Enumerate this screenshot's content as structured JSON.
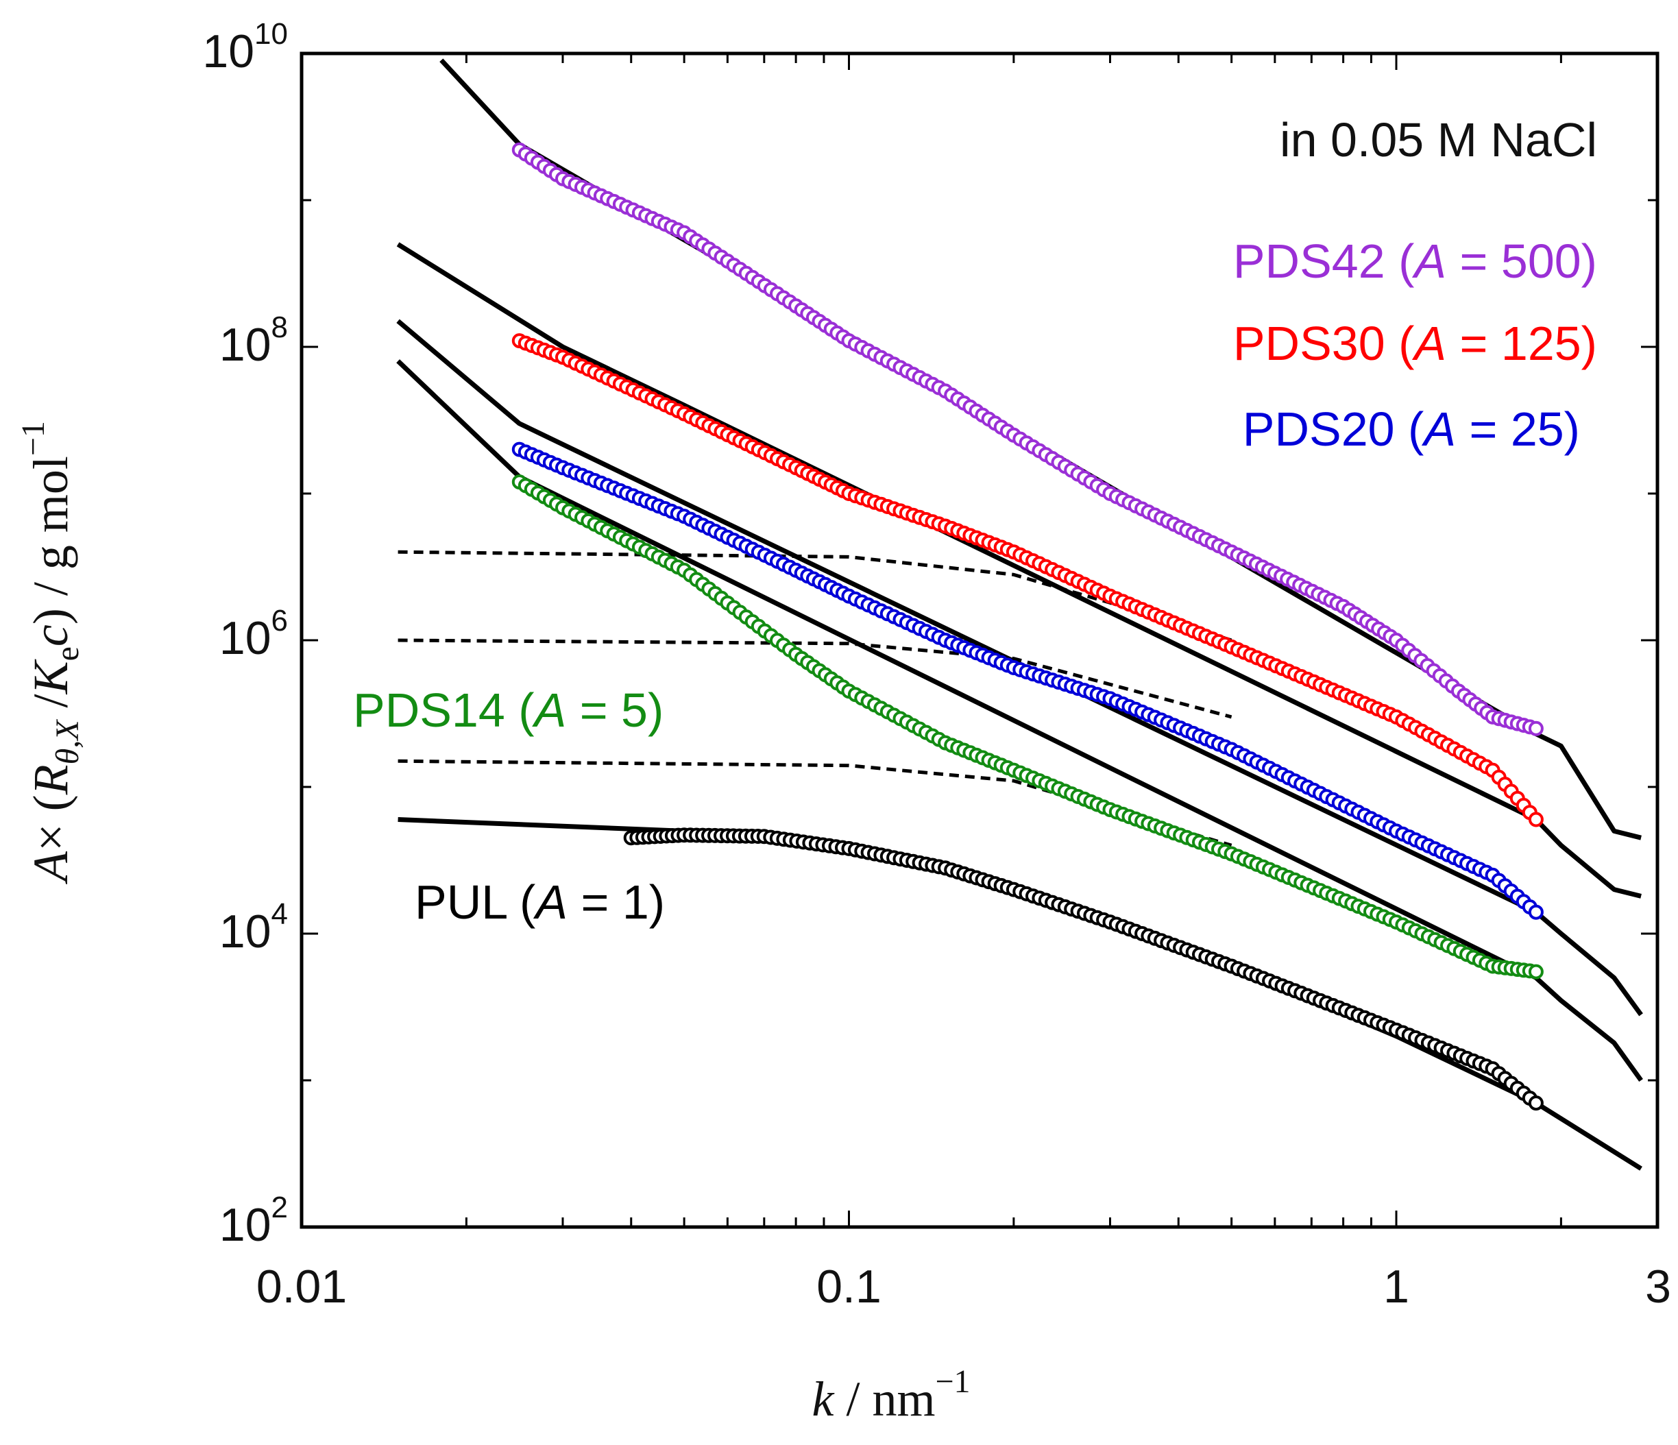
{
  "chart_data": {
    "type": "scatter",
    "title": "",
    "annotation": "in 0.05 M NaCl",
    "x_scale": "log",
    "y_scale": "log",
    "xlim": [
      0.01,
      3
    ],
    "ylim": [
      100,
      10000000000
    ],
    "x_ticks": [
      {
        "value": 0.01,
        "label": "0.01"
      },
      {
        "value": 0.1,
        "label": "0.1"
      },
      {
        "value": 1,
        "label": "1"
      },
      {
        "value": 3,
        "label": "3"
      }
    ],
    "y_ticks": [
      {
        "value": 100,
        "base": "10",
        "exp": "2"
      },
      {
        "value": 10000,
        "base": "10",
        "exp": "4"
      },
      {
        "value": 1000000,
        "base": "10",
        "exp": "6"
      },
      {
        "value": 100000000,
        "base": "10",
        "exp": "8"
      },
      {
        "value": 10000000000,
        "base": "10",
        "exp": "10"
      }
    ],
    "xlabel": {
      "var": "k",
      "rest": " / nm",
      "sup": "−1"
    },
    "ylabel": {
      "a": "A",
      "times": "×",
      "open": " (",
      "r": "R",
      "rsub": "θ,X",
      "slash": " /",
      "k": "K",
      "ksub": "e",
      "c": "c",
      "close": ") / g mol",
      "sup": "−1"
    },
    "grid": false,
    "series": [
      {
        "name": "PDS42",
        "scale_text": "500",
        "color": "#9a2fd6",
        "label_position": "top-right",
        "points": [
          [
            0.025,
            2200000000
          ],
          [
            0.03,
            1400000000
          ],
          [
            0.05,
            600000000
          ],
          [
            0.08,
            190000000
          ],
          [
            0.1,
            110000000
          ],
          [
            0.15,
            50000000
          ],
          [
            0.2,
            25000000
          ],
          [
            0.3,
            10000000
          ],
          [
            0.5,
            4000000
          ],
          [
            0.8,
            1700000
          ],
          [
            1.0,
            1000000
          ],
          [
            1.3,
            450000
          ],
          [
            1.5,
            300000
          ],
          [
            1.8,
            250000
          ]
        ],
        "model_curve": [
          [
            0.018,
            9000000000
          ],
          [
            0.025,
            2400000000
          ],
          [
            1.8,
            230000
          ],
          [
            2.0,
            190000
          ],
          [
            2.5,
            50000
          ],
          [
            2.8,
            45000
          ]
        ]
      },
      {
        "name": "PDS30",
        "scale_text": "125",
        "color": "#ff0000",
        "label_position": "top-right",
        "points": [
          [
            0.025,
            110000000
          ],
          [
            0.03,
            85000000
          ],
          [
            0.05,
            35000000
          ],
          [
            0.08,
            15000000
          ],
          [
            0.1,
            10000000
          ],
          [
            0.15,
            6000000
          ],
          [
            0.2,
            4000000
          ],
          [
            0.3,
            2000000
          ],
          [
            0.5,
            900000
          ],
          [
            1.0,
            300000
          ],
          [
            1.5,
            130000
          ],
          [
            1.8,
            60000
          ]
        ],
        "model_curve": [
          [
            0.015,
            500000000
          ],
          [
            0.03,
            100000000
          ],
          [
            0.05,
            40000000
          ],
          [
            1.8,
            60000
          ],
          [
            2.0,
            40000
          ],
          [
            2.5,
            20000
          ],
          [
            2.8,
            18000
          ]
        ],
        "plateau_curve": [
          [
            0.015,
            4000000
          ],
          [
            0.1,
            3700000
          ],
          [
            0.2,
            2800000
          ],
          [
            0.3,
            1800000
          ],
          [
            0.5,
            1000000
          ]
        ]
      },
      {
        "name": "PDS20",
        "scale_text": "25",
        "color": "#0000d8",
        "label_position": "top-right",
        "points": [
          [
            0.025,
            20000000
          ],
          [
            0.03,
            15000000
          ],
          [
            0.05,
            7000000
          ],
          [
            0.08,
            3000000
          ],
          [
            0.1,
            2000000
          ],
          [
            0.15,
            1000000
          ],
          [
            0.2,
            650000
          ],
          [
            0.3,
            400000
          ],
          [
            0.5,
            180000
          ],
          [
            1.0,
            50000
          ],
          [
            1.5,
            25000
          ],
          [
            1.8,
            14000
          ]
        ],
        "model_curve": [
          [
            0.015,
            150000000
          ],
          [
            0.025,
            30000000
          ],
          [
            1.8,
            14000
          ],
          [
            2.0,
            10000
          ],
          [
            2.5,
            5000
          ],
          [
            2.8,
            2800
          ]
        ],
        "plateau_curve": [
          [
            0.015,
            1000000
          ],
          [
            0.1,
            950000
          ],
          [
            0.2,
            750000
          ],
          [
            0.3,
            500000
          ],
          [
            0.5,
            300000
          ]
        ]
      },
      {
        "name": "PDS14",
        "scale_text": "5",
        "color": "#138c13",
        "label_position": "middle-left",
        "points": [
          [
            0.025,
            12000000
          ],
          [
            0.03,
            8000000
          ],
          [
            0.05,
            3000000
          ],
          [
            0.08,
            800000
          ],
          [
            0.1,
            450000
          ],
          [
            0.15,
            200000
          ],
          [
            0.2,
            130000
          ],
          [
            0.3,
            70000
          ],
          [
            0.5,
            35000
          ],
          [
            1.0,
            12000
          ],
          [
            1.5,
            6000
          ],
          [
            1.8,
            5500
          ]
        ],
        "model_curve": [
          [
            0.015,
            80000000
          ],
          [
            0.025,
            13000000
          ],
          [
            1.8,
            5000
          ],
          [
            2.0,
            3500
          ],
          [
            2.5,
            1800
          ],
          [
            2.8,
            1000
          ]
        ],
        "plateau_curve": [
          [
            0.015,
            150000
          ],
          [
            0.1,
            140000
          ],
          [
            0.2,
            110000
          ],
          [
            0.3,
            70000
          ],
          [
            0.5,
            40000
          ]
        ]
      },
      {
        "name": "PUL",
        "scale_text": "1",
        "color": "#000000",
        "label_position": "lower-left",
        "points": [
          [
            0.04,
            45000
          ],
          [
            0.05,
            47000
          ],
          [
            0.07,
            46000
          ],
          [
            0.1,
            38000
          ],
          [
            0.15,
            28000
          ],
          [
            0.2,
            20000
          ],
          [
            0.3,
            12000
          ],
          [
            0.5,
            6000
          ],
          [
            1.0,
            2200
          ],
          [
            1.5,
            1200
          ],
          [
            1.8,
            700
          ]
        ],
        "model_curve": [
          [
            0.015,
            60000
          ],
          [
            0.05,
            50000
          ],
          [
            0.1,
            40000
          ],
          [
            0.2,
            20000
          ],
          [
            0.5,
            6000
          ],
          [
            1.0,
            2000
          ],
          [
            1.8,
            700
          ],
          [
            2.8,
            250
          ]
        ]
      }
    ],
    "label_equals": " = ",
    "label_A": "A"
  }
}
